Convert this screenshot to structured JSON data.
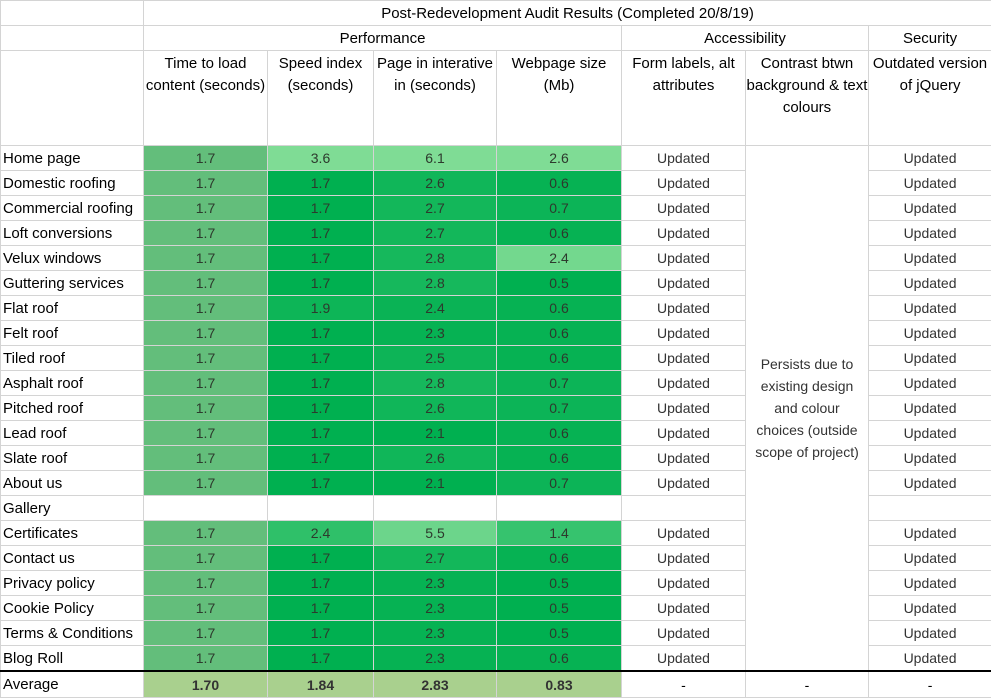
{
  "title": "Post-Redevelopment Audit Results (Completed 20/8/19)",
  "groups": {
    "performance": "Performance",
    "accessibility": "Accessibility",
    "security": "Security"
  },
  "headers": {
    "load": "Time to load content (seconds)",
    "speed": "Speed index (seconds)",
    "interactive": "Page in interative in (seconds)",
    "size": "Webpage size (Mb)",
    "form": "Form labels, alt attributes",
    "contrast": "Contrast btwn background & text colours",
    "jquery": "Outdated version of jQuery"
  },
  "contrast_note": "Persists due to existing design and colour choices (outside scope of project)",
  "rows": [
    {
      "page": "Home page",
      "load": "1.7",
      "speed": "3.6",
      "interactive": "6.1",
      "size": "2.6",
      "form": "Updated",
      "jquery": "Updated"
    },
    {
      "page": "Domestic roofing",
      "load": "1.7",
      "speed": "1.7",
      "interactive": "2.6",
      "size": "0.6",
      "form": "Updated",
      "jquery": "Updated"
    },
    {
      "page": "Commercial roofing",
      "load": "1.7",
      "speed": "1.7",
      "interactive": "2.7",
      "size": "0.7",
      "form": "Updated",
      "jquery": "Updated"
    },
    {
      "page": "Loft conversions",
      "load": "1.7",
      "speed": "1.7",
      "interactive": "2.7",
      "size": "0.6",
      "form": "Updated",
      "jquery": "Updated"
    },
    {
      "page": "Velux windows",
      "load": "1.7",
      "speed": "1.7",
      "interactive": "2.8",
      "size": "2.4",
      "form": "Updated",
      "jquery": "Updated"
    },
    {
      "page": "Guttering services",
      "load": "1.7",
      "speed": "1.7",
      "interactive": "2.8",
      "size": "0.5",
      "form": "Updated",
      "jquery": "Updated"
    },
    {
      "page": "Flat roof",
      "load": "1.7",
      "speed": "1.9",
      "interactive": "2.4",
      "size": "0.6",
      "form": "Updated",
      "jquery": "Updated"
    },
    {
      "page": "Felt roof",
      "load": "1.7",
      "speed": "1.7",
      "interactive": "2.3",
      "size": "0.6",
      "form": "Updated",
      "jquery": "Updated"
    },
    {
      "page": "Tiled roof",
      "load": "1.7",
      "speed": "1.7",
      "interactive": "2.5",
      "size": "0.6",
      "form": "Updated",
      "jquery": "Updated"
    },
    {
      "page": "Asphalt roof",
      "load": "1.7",
      "speed": "1.7",
      "interactive": "2.8",
      "size": "0.7",
      "form": "Updated",
      "jquery": "Updated"
    },
    {
      "page": "Pitched roof",
      "load": "1.7",
      "speed": "1.7",
      "interactive": "2.6",
      "size": "0.7",
      "form": "Updated",
      "jquery": "Updated"
    },
    {
      "page": "Lead roof",
      "load": "1.7",
      "speed": "1.7",
      "interactive": "2.1",
      "size": "0.6",
      "form": "Updated",
      "jquery": "Updated"
    },
    {
      "page": "Slate roof",
      "load": "1.7",
      "speed": "1.7",
      "interactive": "2.6",
      "size": "0.6",
      "form": "Updated",
      "jquery": "Updated"
    },
    {
      "page": "About us",
      "load": "1.7",
      "speed": "1.7",
      "interactive": "2.1",
      "size": "0.7",
      "form": "Updated",
      "jquery": "Updated"
    },
    {
      "page": "Gallery",
      "load": "",
      "speed": "",
      "interactive": "",
      "size": "",
      "form": "",
      "jquery": ""
    },
    {
      "page": "Certificates",
      "load": "1.7",
      "speed": "2.4",
      "interactive": "5.5",
      "size": "1.4",
      "form": "Updated",
      "jquery": "Updated"
    },
    {
      "page": "Contact us",
      "load": "1.7",
      "speed": "1.7",
      "interactive": "2.7",
      "size": "0.6",
      "form": "Updated",
      "jquery": "Updated"
    },
    {
      "page": "Privacy policy",
      "load": "1.7",
      "speed": "1.7",
      "interactive": "2.3",
      "size": "0.5",
      "form": "Updated",
      "jquery": "Updated"
    },
    {
      "page": "Cookie Policy",
      "load": "1.7",
      "speed": "1.7",
      "interactive": "2.3",
      "size": "0.5",
      "form": "Updated",
      "jquery": "Updated"
    },
    {
      "page": "Terms & Conditions",
      "load": "1.7",
      "speed": "1.7",
      "interactive": "2.3",
      "size": "0.5",
      "form": "Updated",
      "jquery": "Updated"
    },
    {
      "page": "Blog Roll",
      "load": "1.7",
      "speed": "1.7",
      "interactive": "2.3",
      "size": "0.6",
      "form": "Updated",
      "jquery": "Updated"
    }
  ],
  "average": {
    "label": "Average",
    "load": "1.70",
    "speed": "1.84",
    "interactive": "2.83",
    "size": "0.83",
    "form": "-",
    "contrast": "-",
    "jquery": "-"
  },
  "colors": {
    "load": "#63be7b",
    "avg": "#a9d08e",
    "scale_low": "#00b050",
    "scale_high": "#7fdc95"
  }
}
